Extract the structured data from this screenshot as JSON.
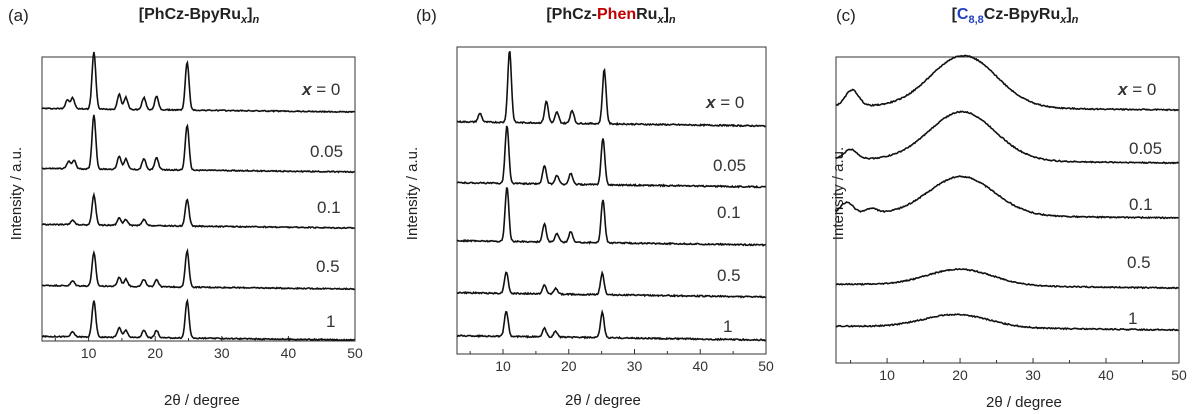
{
  "chart_data": [
    {
      "type": "line",
      "panel_label": "(a)",
      "title": "[PhCz-BpyRu",
      "title_sub": "x",
      "title_tail": "]",
      "title_sub2": "n",
      "xlabel": "2θ / degree",
      "ylabel": "Intensity / a.u.",
      "xlim": [
        3,
        50
      ],
      "xticks": [
        "10",
        "20",
        "30",
        "40",
        "50"
      ],
      "series_labels": [
        "x = 0",
        "0.05",
        "0.1",
        "0.5",
        "1"
      ],
      "series": [
        {
          "name": "x = 0",
          "peaks": [
            [
              6.8,
              0.15
            ],
            [
              7.6,
              0.18
            ],
            [
              10.8,
              0.95
            ],
            [
              14.6,
              0.25
            ],
            [
              15.6,
              0.2
            ],
            [
              18.3,
              0.2
            ],
            [
              20.2,
              0.22
            ],
            [
              24.8,
              0.8
            ]
          ]
        },
        {
          "name": "0.05",
          "peaks": [
            [
              7.0,
              0.12
            ],
            [
              7.8,
              0.14
            ],
            [
              10.8,
              0.9
            ],
            [
              14.6,
              0.22
            ],
            [
              15.6,
              0.18
            ],
            [
              18.3,
              0.18
            ],
            [
              20.2,
              0.2
            ],
            [
              24.8,
              0.75
            ]
          ]
        },
        {
          "name": "0.1",
          "peaks": [
            [
              7.6,
              0.08
            ],
            [
              10.8,
              0.5
            ],
            [
              14.6,
              0.12
            ],
            [
              15.6,
              0.1
            ],
            [
              18.3,
              0.1
            ],
            [
              24.8,
              0.45
            ]
          ]
        },
        {
          "name": "0.5",
          "peaks": [
            [
              7.6,
              0.08
            ],
            [
              10.8,
              0.55
            ],
            [
              14.6,
              0.15
            ],
            [
              15.6,
              0.12
            ],
            [
              18.3,
              0.12
            ],
            [
              20.2,
              0.12
            ],
            [
              24.8,
              0.6
            ]
          ]
        },
        {
          "name": "1",
          "peaks": [
            [
              7.6,
              0.08
            ],
            [
              10.8,
              0.6
            ],
            [
              14.6,
              0.16
            ],
            [
              15.6,
              0.12
            ],
            [
              18.3,
              0.12
            ],
            [
              20.2,
              0.12
            ],
            [
              24.8,
              0.62
            ]
          ]
        }
      ]
    },
    {
      "type": "line",
      "panel_label": "(b)",
      "title": "[PhCz-",
      "title_red": "Phen",
      "title_after": "Ru",
      "title_sub": "x",
      "title_tail": "]",
      "title_sub2": "n",
      "xlabel": "2θ / degree",
      "ylabel": "Intensity / a.u.",
      "xlim": [
        3,
        50
      ],
      "xticks": [
        "10",
        "20",
        "30",
        "40",
        "50"
      ],
      "series_labels": [
        "x = 0",
        "0.05",
        "0.1",
        "0.5",
        "1"
      ],
      "series": [
        {
          "name": "x = 0",
          "peaks": [
            [
              6.5,
              0.12
            ],
            [
              11.0,
              1.0
            ],
            [
              16.6,
              0.3
            ],
            [
              18.2,
              0.15
            ],
            [
              20.5,
              0.18
            ],
            [
              25.4,
              0.75
            ]
          ]
        },
        {
          "name": "0.05",
          "peaks": [
            [
              10.6,
              0.8
            ],
            [
              16.3,
              0.25
            ],
            [
              18.2,
              0.12
            ],
            [
              20.3,
              0.15
            ],
            [
              25.2,
              0.65
            ]
          ]
        },
        {
          "name": "0.1",
          "peaks": [
            [
              10.6,
              0.75
            ],
            [
              16.3,
              0.25
            ],
            [
              18.2,
              0.12
            ],
            [
              20.3,
              0.15
            ],
            [
              25.2,
              0.6
            ]
          ]
        },
        {
          "name": "0.5",
          "peaks": [
            [
              10.5,
              0.3
            ],
            [
              16.3,
              0.12
            ],
            [
              18.0,
              0.08
            ],
            [
              25.1,
              0.3
            ]
          ]
        },
        {
          "name": "1",
          "peaks": [
            [
              10.5,
              0.35
            ],
            [
              16.3,
              0.12
            ],
            [
              18.0,
              0.08
            ],
            [
              25.1,
              0.35
            ]
          ]
        }
      ]
    },
    {
      "type": "line",
      "panel_label": "(c)",
      "title": "[",
      "title_blue": "C",
      "title_blue_sub": "8,8",
      "title_after": "Cz-BpyRu",
      "title_sub": "x",
      "title_tail": "]",
      "title_sub2": "n",
      "xlabel": "2θ / degree",
      "ylabel": "Intensity / a.u.",
      "xlim": [
        3,
        50
      ],
      "xticks": [
        "10",
        "20",
        "30",
        "40",
        "50"
      ],
      "series_labels": [
        "x = 0",
        "0.05",
        "0.1",
        "0.5",
        "1"
      ],
      "series": [
        {
          "name": "x = 0",
          "peaks": [
            [
              5.2,
              0.25
            ]
          ],
          "hump": [
            20.5,
            0.8
          ]
        },
        {
          "name": "0.05",
          "peaks": [
            [
              5.0,
              0.15
            ]
          ],
          "hump": [
            20.3,
            0.75
          ]
        },
        {
          "name": "0.1",
          "peaks": [
            [
              4.5,
              0.18
            ],
            [
              7.8,
              0.08
            ]
          ],
          "hump": [
            20.2,
            0.6
          ]
        },
        {
          "name": "0.5",
          "peaks": [],
          "hump": [
            20.0,
            0.25
          ]
        },
        {
          "name": "1",
          "peaks": [],
          "hump": [
            19.5,
            0.2
          ]
        }
      ]
    }
  ]
}
